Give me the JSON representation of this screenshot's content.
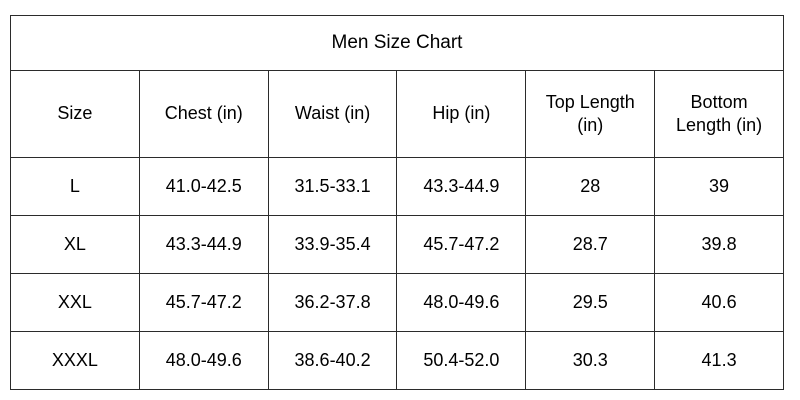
{
  "chart_data": {
    "type": "table",
    "title": "Men Size Chart",
    "columns": [
      "Size",
      "Chest (in)",
      "Waist (in)",
      "Hip (in)",
      "Top Length (in)",
      "Bottom Length (in)"
    ],
    "rows": [
      [
        "L",
        "41.0-42.5",
        "31.5-33.1",
        "43.3-44.9",
        "28",
        "39"
      ],
      [
        "XL",
        "43.3-44.9",
        "33.9-35.4",
        "45.7-47.2",
        "28.7",
        "39.8"
      ],
      [
        "XXL",
        "45.7-47.2",
        "36.2-37.8",
        "48.0-49.6",
        "29.5",
        "40.6"
      ],
      [
        "XXXL",
        "48.0-49.6",
        "38.6-40.2",
        "50.4-52.0",
        "30.3",
        "41.3"
      ]
    ],
    "layout": {
      "grid": "all-borders",
      "title_position": "top-center",
      "column_count": 6,
      "row_count": 4
    }
  },
  "colors": {
    "border": "#2b2b2b",
    "background": "#ffffff",
    "text": "#000000"
  }
}
